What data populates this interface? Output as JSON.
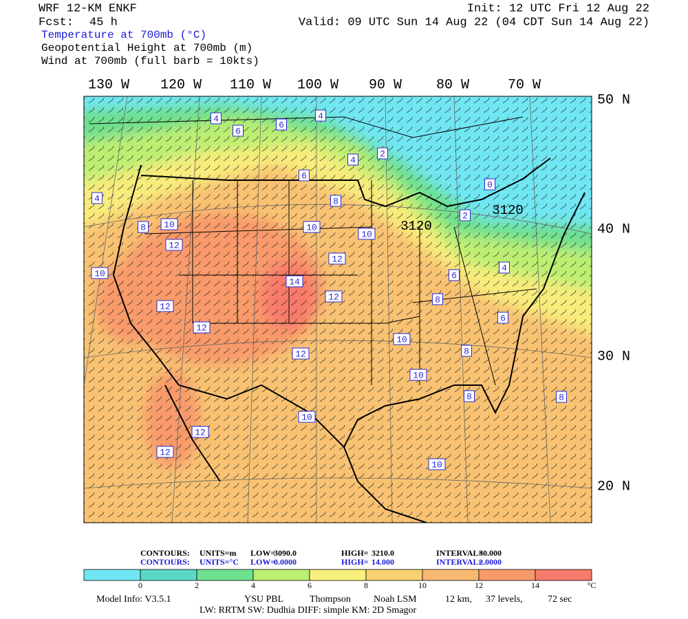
{
  "header": {
    "model": "WRF 12-KM ENKF",
    "fcst_label": "Fcst:",
    "fcst_value": "45 h",
    "init": "Init: 12 UTC Fri 12 Aug 22",
    "valid": "Valid: 09 UTC Sun 14 Aug 22 (04 CDT Sun 14 Aug 22)",
    "fields": [
      "Temperature at 700mb (°C)",
      "Geopotential Height at 700mb (m)",
      "Wind at 700mb (full barb = 10kts)"
    ]
  },
  "map": {
    "lon_labels": [
      "130 W",
      "120 W",
      "110 W",
      "100 W",
      "90 W",
      "80 W",
      "70 W"
    ],
    "lat_labels": [
      "50 N",
      "40 N",
      "30 N",
      "20 N"
    ],
    "contour_labels": [
      "4",
      "6",
      "6",
      "4",
      "4",
      "6",
      "8",
      "10",
      "10",
      "12",
      "14",
      "12",
      "12",
      "12",
      "12",
      "12",
      "10",
      "8",
      "10",
      "4",
      "2",
      "0",
      "3120",
      "3120",
      "2",
      "4",
      "6",
      "8",
      "6",
      "10",
      "10",
      "8",
      "8",
      "8",
      "10",
      "12",
      "12",
      "10"
    ]
  },
  "contour_info": {
    "rows": [
      [
        "CONTOURS:",
        "UNITS=m",
        "LOW=",
        "3090.0",
        "HIGH=",
        "3210.0",
        "INTERVAL=",
        "30.000"
      ],
      [
        "CONTOURS:",
        "UNITS=°C",
        "LOW=",
        "0.0000",
        "HIGH=",
        "14.000",
        "INTERVAL=",
        "2.0000"
      ]
    ]
  },
  "colorbar": {
    "labels": [
      "0",
      "2",
      "4",
      "6",
      "8",
      "10",
      "12",
      "14",
      "°C"
    ],
    "colors": [
      "#70e6f2",
      "#5cd8c6",
      "#6ee08e",
      "#bcee72",
      "#f8f07c",
      "#f8d272",
      "#f8b870",
      "#f89a6a",
      "#f87a6a"
    ]
  },
  "footer": {
    "line1": [
      "Model Info: V3.5.1",
      "YSU PBL",
      "Thompson",
      "Noah LSM",
      "12 km,",
      "37 levels,",
      "72 sec"
    ],
    "line2": "LW: RRTM SW: Dudhia  DIFF: simple KM: 2D Smagor"
  }
}
